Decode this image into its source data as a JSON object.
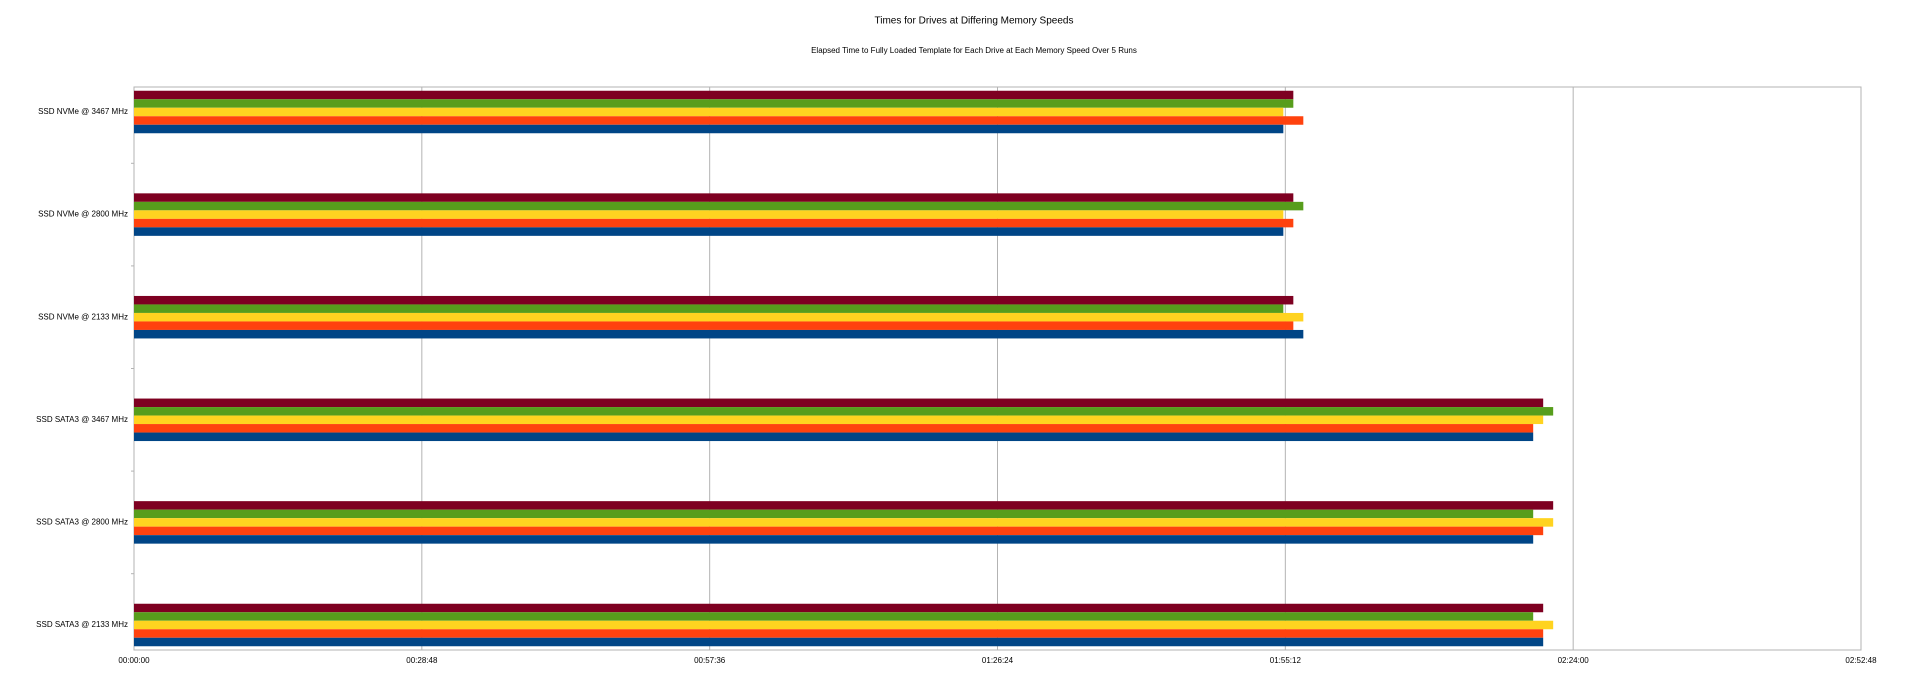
{
  "chart_data": {
    "type": "hbar",
    "title": "Times for Drives at Differing Memory Speeds",
    "subtitle": "Elapsed Time to Fully Loaded Template for Each Drive at Each Memory Speed Over 5 Runs",
    "categories": [
      "SSD NVMe @ 3467 MHz",
      "SSD NVMe @ 2800 MHz",
      "SSD NVMe @ 2133 MHz",
      "SSD SATA3 @ 3467 MHz",
      "SSD SATA3 @ 2800 MHz",
      "SSD SATA3 @ 2133 MHz"
    ],
    "series": [
      {
        "color": "#7e0021",
        "values": [
          6960,
          6960,
          6960,
          8460,
          8520,
          8460
        ]
      },
      {
        "color": "#579d1c",
        "values": [
          6960,
          7020,
          6900,
          8520,
          8400,
          8400
        ]
      },
      {
        "color": "#ffd320",
        "values": [
          6900,
          6900,
          7020,
          8460,
          8520,
          8520
        ]
      },
      {
        "color": "#ff420e",
        "values": [
          7020,
          6960,
          6960,
          8400,
          8460,
          8460
        ]
      },
      {
        "color": "#004586",
        "values": [
          6900,
          6900,
          7020,
          8400,
          8400,
          8460
        ]
      }
    ],
    "xlim": [
      0,
      10368
    ],
    "xticks": [
      {
        "value": 0,
        "label": "00:00:00"
      },
      {
        "value": 1728,
        "label": "00:28:48"
      },
      {
        "value": 3456,
        "label": "00:57:36"
      },
      {
        "value": 5184,
        "label": "01:26:24"
      },
      {
        "value": 6912,
        "label": "01:55:12"
      },
      {
        "value": 8640,
        "label": "02:24:00"
      },
      {
        "value": 10368,
        "label": "02:52:48"
      }
    ],
    "grid": true
  }
}
